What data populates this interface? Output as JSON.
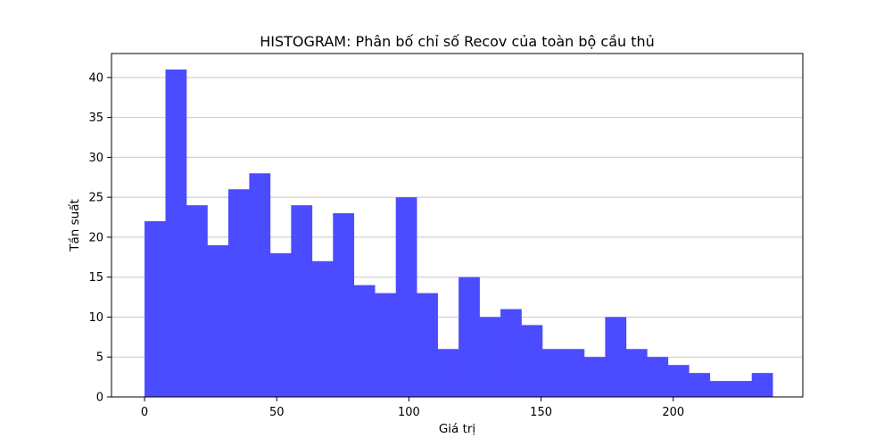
{
  "chart_data": {
    "type": "bar",
    "title": "HISTOGRAM: Phân bố chỉ số Recov của toàn bộ cầu thủ",
    "xlabel": "Giá trị",
    "ylabel": "Tần suất",
    "bin_start": 0,
    "bin_width": 7.92,
    "values": [
      22,
      41,
      24,
      19,
      26,
      28,
      18,
      24,
      17,
      23,
      14,
      13,
      25,
      13,
      6,
      15,
      10,
      11,
      9,
      6,
      6,
      5,
      10,
      6,
      5,
      4,
      3,
      2,
      2,
      3
    ],
    "xlim": [
      -12.5,
      249
    ],
    "ylim": [
      0,
      43
    ],
    "xticks": [
      0,
      50,
      100,
      150,
      200
    ],
    "yticks": [
      0,
      5,
      10,
      15,
      20,
      25,
      30,
      35,
      40
    ],
    "bar_color": "#4b4bff",
    "grid": "y",
    "legend": "none"
  }
}
